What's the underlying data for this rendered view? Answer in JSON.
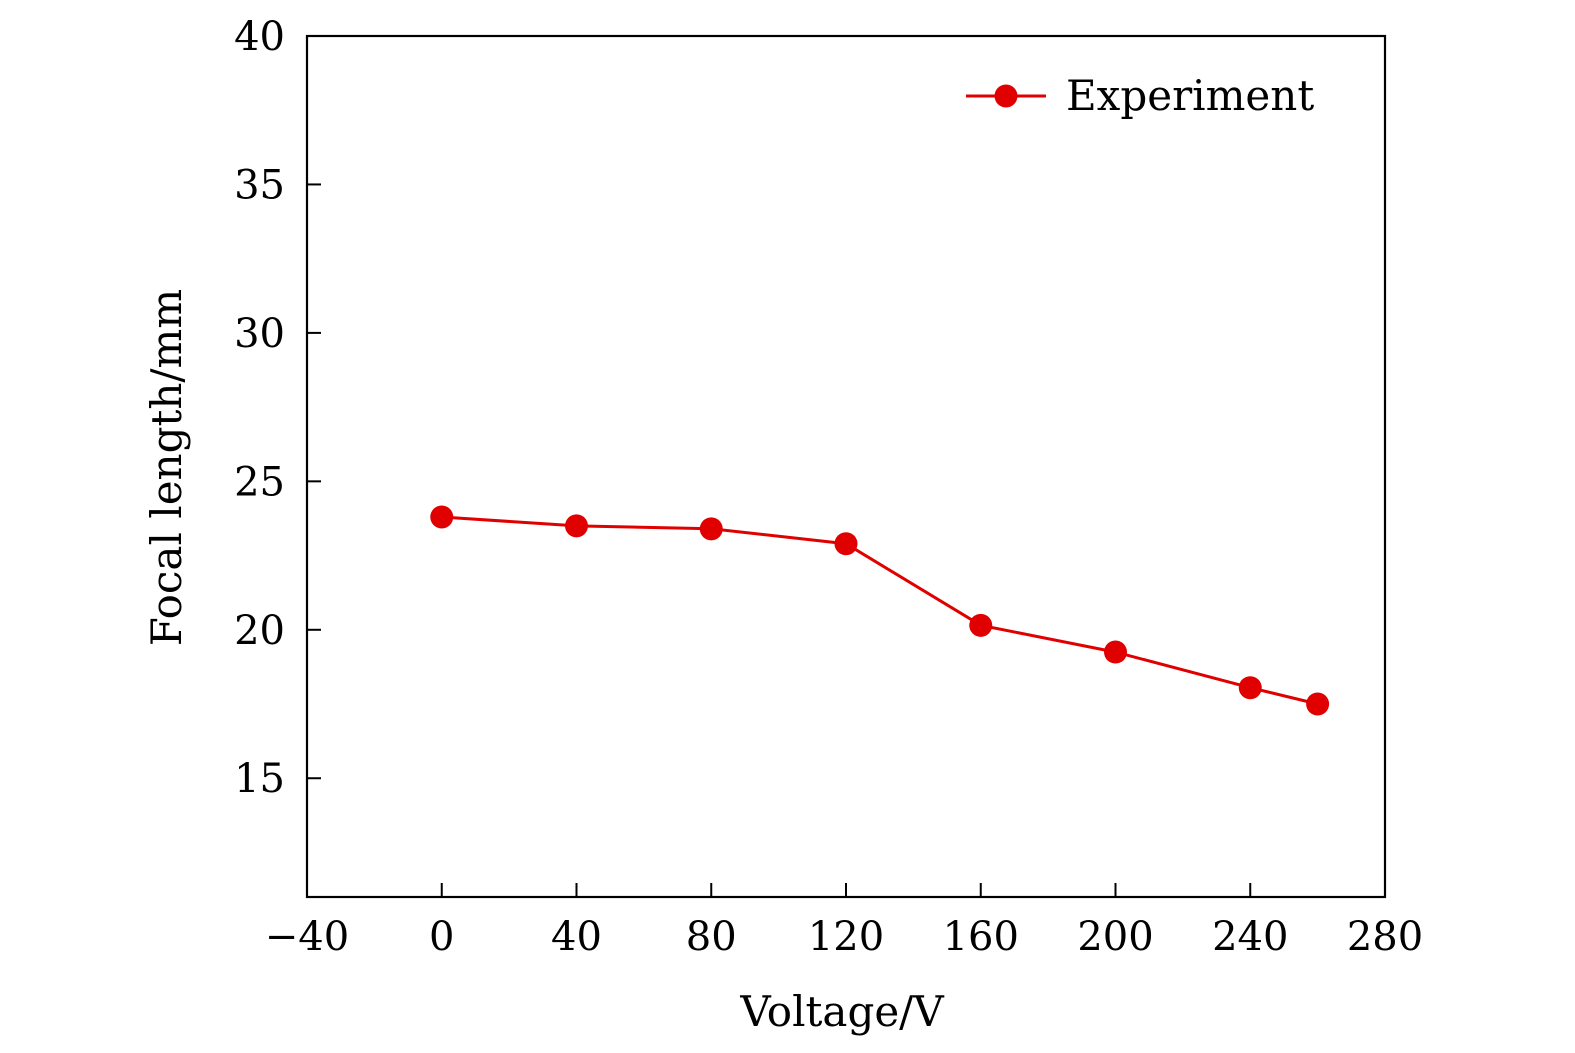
{
  "chart_data": {
    "type": "line",
    "title": "",
    "xlabel": "Voltage/V",
    "ylabel": "Focal length/mm",
    "xlim": [
      -40,
      280
    ],
    "ylim": [
      11,
      40
    ],
    "xticks": [
      -40,
      0,
      40,
      80,
      120,
      160,
      200,
      240,
      280
    ],
    "xtick_labels": [
      "−40",
      "0",
      "40",
      "80",
      "120",
      "160",
      "200",
      "240",
      "280"
    ],
    "yticks": [
      15,
      20,
      25,
      30,
      35,
      40
    ],
    "ytick_labels": [
      "15",
      "20",
      "25",
      "30",
      "35",
      "40"
    ],
    "grid": false,
    "legend": {
      "position": "top-right"
    },
    "series": [
      {
        "name": "Experiment",
        "color": "#e00000",
        "marker": "circle",
        "x": [
          0,
          40,
          80,
          120,
          160,
          200,
          240,
          260
        ],
        "y": [
          23.8,
          23.5,
          23.4,
          22.9,
          20.15,
          19.25,
          18.05,
          17.5
        ]
      }
    ]
  }
}
